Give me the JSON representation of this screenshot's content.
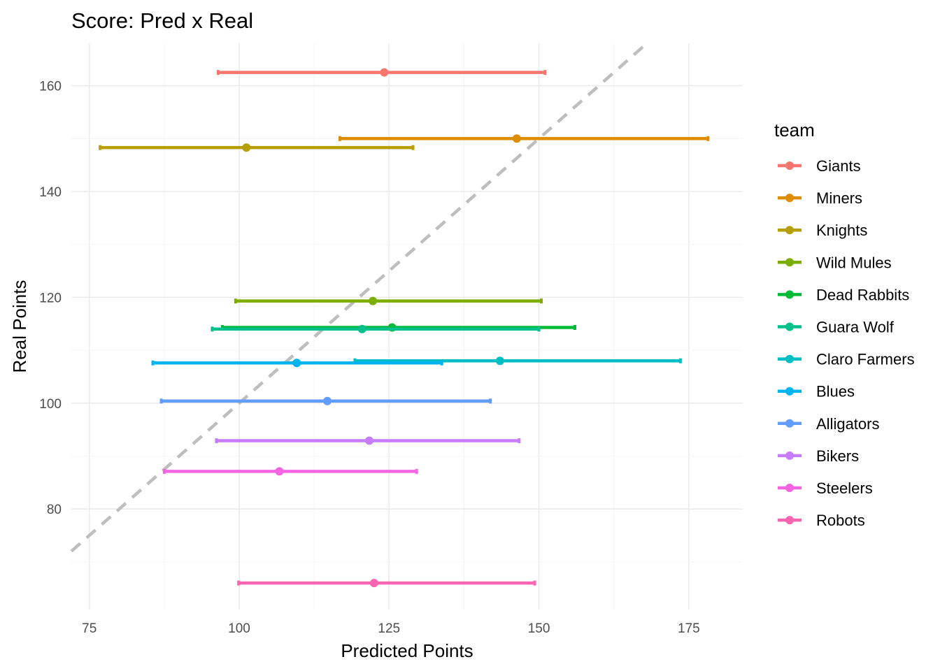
{
  "chart_data": {
    "type": "errorbar-scatter",
    "title": "Score: Pred x Real",
    "xlabel": "Predicted Points",
    "ylabel": "Real Points",
    "xlim": [
      72,
      184
    ],
    "ylim": [
      61,
      168
    ],
    "x_ticks": [
      75,
      100,
      125,
      150,
      175
    ],
    "y_ticks": [
      80,
      100,
      120,
      140,
      160
    ],
    "grid": true,
    "reference_line": {
      "type": "identity",
      "style": "dashed",
      "color": "#bebebe"
    },
    "legend": {
      "title": "team",
      "position": "right"
    },
    "series": [
      {
        "name": "Giants",
        "color": "#F8766D",
        "x": 124.2,
        "xmin": 96.5,
        "xmax": 151.0,
        "y": 162.5
      },
      {
        "name": "Miners",
        "color": "#DE8C00",
        "x": 146.3,
        "xmin": 116.8,
        "xmax": 178.2,
        "y": 150.0
      },
      {
        "name": "Knights",
        "color": "#B79F00",
        "x": 101.2,
        "xmin": 76.8,
        "xmax": 129.0,
        "y": 148.3
      },
      {
        "name": "Wild Mules",
        "color": "#7CAE00",
        "x": 122.3,
        "xmin": 99.4,
        "xmax": 150.4,
        "y": 119.3
      },
      {
        "name": "Dead Rabbits",
        "color": "#00BA38",
        "x": 125.5,
        "xmin": 97.2,
        "xmax": 156.0,
        "y": 114.3
      },
      {
        "name": "Guara Wolf",
        "color": "#00C08B",
        "x": 120.5,
        "xmin": 95.5,
        "xmax": 150.0,
        "y": 114.0
      },
      {
        "name": "Claro Farmers",
        "color": "#00BFC4",
        "x": 143.5,
        "xmin": 119.3,
        "xmax": 173.6,
        "y": 108.0
      },
      {
        "name": "Blues",
        "color": "#00B4F0",
        "x": 109.6,
        "xmin": 85.6,
        "xmax": 133.8,
        "y": 107.6
      },
      {
        "name": "Alligators",
        "color": "#619CFF",
        "x": 114.7,
        "xmin": 87.0,
        "xmax": 141.9,
        "y": 100.4
      },
      {
        "name": "Bikers",
        "color": "#C77CFF",
        "x": 121.7,
        "xmin": 96.2,
        "xmax": 146.7,
        "y": 92.9
      },
      {
        "name": "Steelers",
        "color": "#F564E3",
        "x": 106.7,
        "xmin": 87.5,
        "xmax": 129.6,
        "y": 87.1
      },
      {
        "name": "Robots",
        "color": "#FF64B0",
        "x": 122.5,
        "xmin": 99.9,
        "xmax": 149.3,
        "y": 66.0
      }
    ]
  }
}
